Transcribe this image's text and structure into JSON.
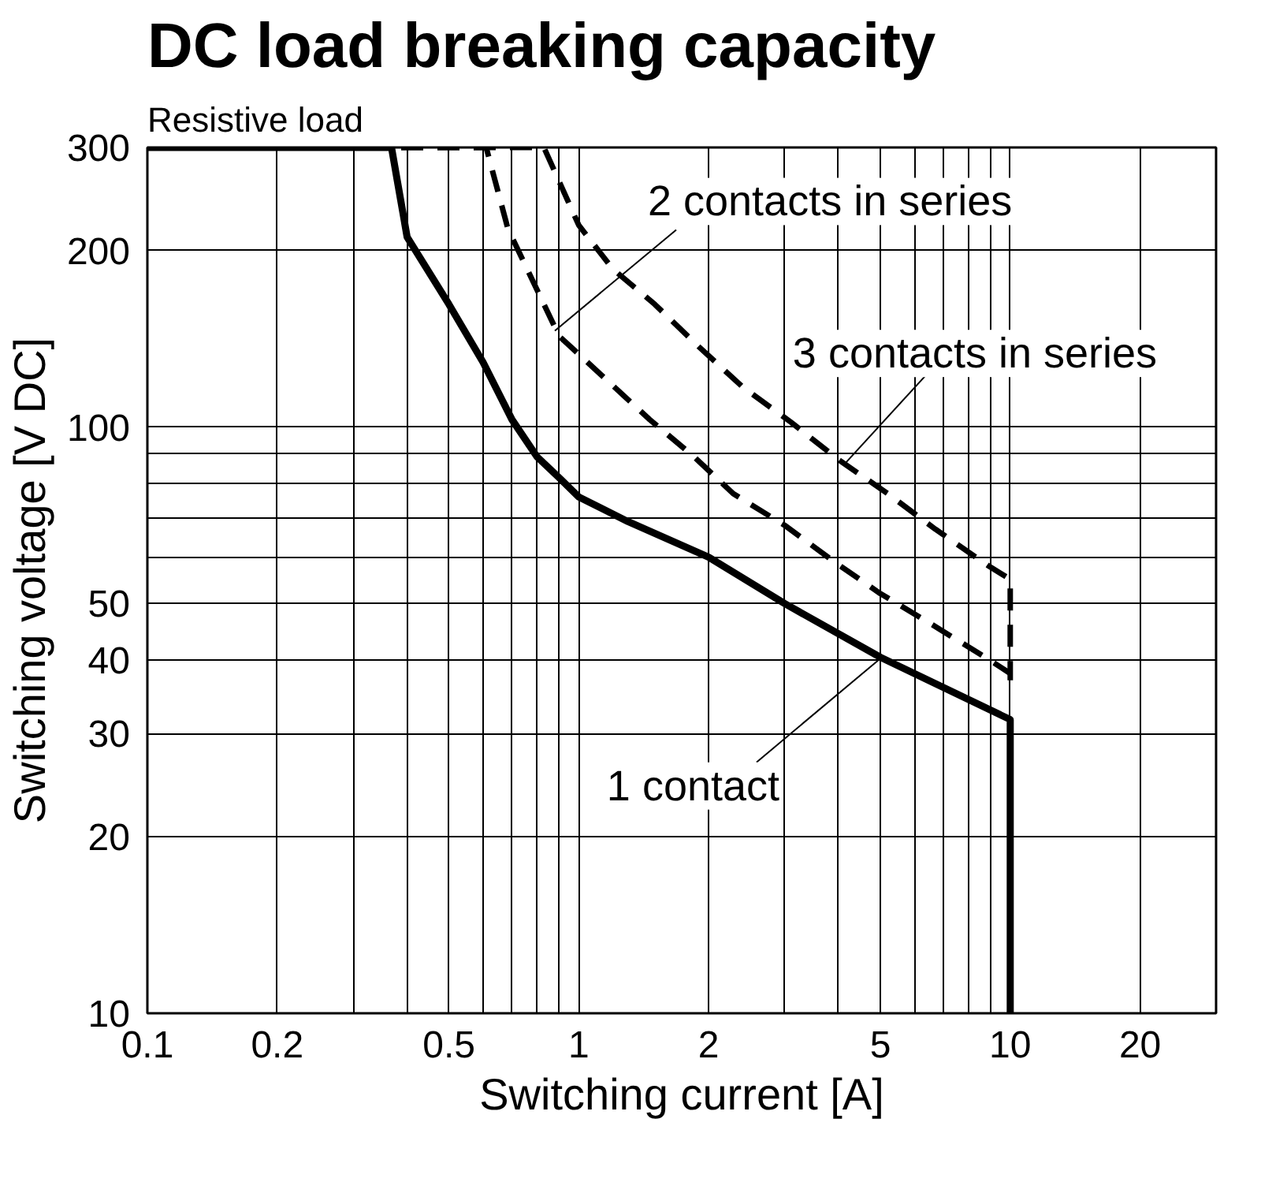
{
  "chart_data": {
    "type": "line",
    "title": "DC load breaking capacity",
    "subtitle": "Resistive load",
    "xlabel": "Switching current [A]",
    "ylabel": "Switching voltage [V DC]",
    "log": "xy",
    "grid": true,
    "xlim": [
      0.1,
      30
    ],
    "ylim": [
      10,
      300
    ],
    "xticks": [
      0.1,
      0.2,
      {
        "value": 0.3,
        "label": null
      },
      {
        "value": 0.4,
        "label": null
      },
      0.5,
      {
        "value": 0.6,
        "label": null
      },
      {
        "value": 0.7,
        "label": null
      },
      {
        "value": 0.8,
        "label": null
      },
      {
        "value": 0.9,
        "label": null
      },
      1,
      2,
      {
        "value": 3,
        "label": null
      },
      {
        "value": 4,
        "label": null
      },
      5,
      {
        "value": 6,
        "label": null
      },
      {
        "value": 7,
        "label": null
      },
      {
        "value": 8,
        "label": null
      },
      {
        "value": 9,
        "label": null
      },
      10,
      20
    ],
    "yticks": [
      10,
      20,
      30,
      40,
      50,
      {
        "value": 60,
        "label": null
      },
      {
        "value": 70,
        "label": null
      },
      {
        "value": 80,
        "label": null
      },
      {
        "value": 90,
        "label": null
      },
      100,
      200,
      300
    ],
    "series": [
      {
        "color": "#000000",
        "line_style": "solid",
        "x": [
          0.1,
          0.368,
          0.4,
          0.5,
          0.6,
          0.7,
          0.8,
          0.9,
          1,
          1.3,
          2,
          3,
          5,
          10,
          10
        ],
        "values": [
          300,
          300,
          211,
          162,
          129,
          103,
          89,
          82,
          76,
          69,
          60,
          50,
          40.5,
          31.7,
          10
        ]
      },
      {
        "color": "#000000",
        "line_style": "dashed",
        "x": [
          0.1,
          0.61,
          0.685,
          0.9,
          1.46,
          1.85,
          2.28,
          3,
          3.9,
          5,
          6.6,
          8.7,
          10
        ],
        "values": [
          300,
          300,
          218,
          143,
          103,
          89,
          77,
          68,
          59,
          52,
          46,
          40.6,
          38
        ]
      },
      {
        "color": "#000000",
        "line_style": "dashed",
        "x": [
          0.1,
          0.83,
          1,
          1.2,
          1.5,
          1.9,
          2.4,
          3.1,
          4,
          5.2,
          6.7,
          8.9,
          10,
          10
        ],
        "values": [
          300,
          300,
          221,
          186,
          162,
          137,
          117,
          102,
          88,
          77,
          67,
          58,
          55,
          37
        ]
      }
    ],
    "annotations": [
      {
        "text": "2 contacts in series",
        "x": 0.88,
        "y": 146
      },
      {
        "text": "3 contacts in series",
        "x": 4.1,
        "y": 86
      },
      {
        "text": "1 contact",
        "x": 5.06,
        "y": 40.6
      }
    ]
  }
}
